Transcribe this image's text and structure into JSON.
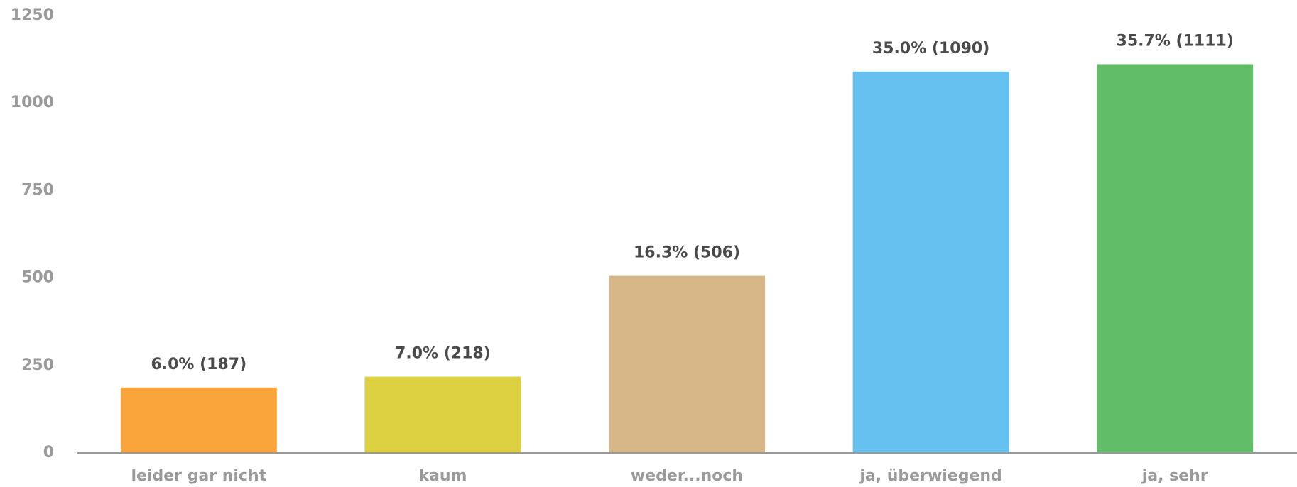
{
  "chart_data": {
    "type": "bar",
    "categories": [
      "leider gar nicht",
      "kaum",
      "weder...noch",
      "ja, überwiegend",
      "ja, sehr"
    ],
    "values": [
      187,
      218,
      506,
      1090,
      1111
    ],
    "value_labels": [
      "6.0% (187)",
      "7.0% (218)",
      "16.3% (506)",
      "35.0% (1090)",
      "35.7% (1111)"
    ],
    "colors": [
      "#f9a53b",
      "#ddd040",
      "#d6b586",
      "#66c0f0",
      "#61bd68"
    ],
    "ylim": [
      0,
      1250
    ],
    "yticks": [
      0,
      250,
      500,
      750,
      1000,
      1250
    ],
    "grid": false
  }
}
